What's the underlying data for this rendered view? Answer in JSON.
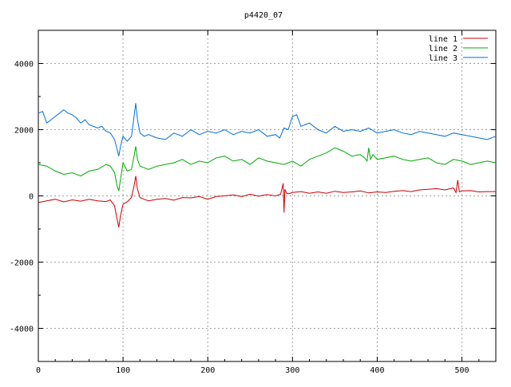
{
  "chart_data": {
    "type": "line",
    "title": "p4420_07",
    "xlabel": "",
    "ylabel": "",
    "xlim": [
      0,
      540
    ],
    "ylim": [
      -5000,
      5000
    ],
    "x_ticks": [
      0,
      100,
      200,
      300,
      400,
      500
    ],
    "y_ticks": [
      -4000,
      -2000,
      0,
      2000,
      4000
    ],
    "grid": true,
    "legend_position": "top-right",
    "series": [
      {
        "name": "line 1",
        "color": "#cc0000",
        "x": [
          0,
          10,
          20,
          30,
          40,
          50,
          60,
          70,
          80,
          85,
          90,
          93,
          95,
          97,
          100,
          105,
          110,
          113,
          115,
          117,
          120,
          125,
          130,
          140,
          150,
          160,
          170,
          180,
          190,
          200,
          210,
          220,
          230,
          240,
          250,
          260,
          270,
          280,
          286,
          289,
          290,
          291,
          293,
          295,
          300,
          310,
          320,
          330,
          340,
          350,
          360,
          370,
          380,
          390,
          400,
          410,
          420,
          430,
          440,
          450,
          460,
          470,
          480,
          490,
          493,
          495,
          497,
          500,
          510,
          520,
          530,
          540
        ],
        "y": [
          -200,
          -150,
          -100,
          -180,
          -120,
          -160,
          -100,
          -150,
          -170,
          -120,
          -300,
          -700,
          -950,
          -600,
          -250,
          -180,
          -50,
          300,
          600,
          200,
          -50,
          -100,
          -150,
          -100,
          -80,
          -130,
          -50,
          -60,
          -20,
          -100,
          -20,
          0,
          30,
          -20,
          50,
          -10,
          40,
          0,
          50,
          380,
          -500,
          200,
          80,
          60,
          100,
          130,
          80,
          120,
          80,
          140,
          100,
          120,
          150,
          90,
          120,
          100,
          140,
          160,
          130,
          180,
          200,
          220,
          180,
          240,
          100,
          480,
          120,
          150,
          160,
          120,
          130,
          130
        ]
      },
      {
        "name": "line 2",
        "color": "#00aa00",
        "x": [
          0,
          10,
          20,
          30,
          40,
          50,
          60,
          70,
          80,
          85,
          90,
          93,
          95,
          97,
          100,
          105,
          110,
          113,
          115,
          117,
          120,
          125,
          130,
          140,
          150,
          160,
          170,
          180,
          190,
          200,
          210,
          220,
          230,
          240,
          250,
          260,
          270,
          280,
          290,
          300,
          310,
          320,
          330,
          340,
          350,
          360,
          370,
          380,
          385,
          388,
          390,
          392,
          395,
          400,
          410,
          420,
          430,
          440,
          450,
          460,
          470,
          480,
          490,
          500,
          510,
          520,
          530,
          540
        ],
        "y": [
          950,
          900,
          750,
          650,
          700,
          600,
          750,
          800,
          950,
          900,
          700,
          300,
          150,
          500,
          1000,
          750,
          800,
          1200,
          1500,
          1100,
          900,
          850,
          800,
          900,
          950,
          1000,
          1100,
          950,
          1050,
          1000,
          1150,
          1200,
          1050,
          1100,
          950,
          1150,
          1050,
          1000,
          950,
          1050,
          900,
          1100,
          1200,
          1300,
          1450,
          1350,
          1200,
          1250,
          1150,
          1050,
          1450,
          1100,
          1250,
          1100,
          1150,
          1200,
          1100,
          1050,
          1100,
          1150,
          1000,
          950,
          1100,
          1050,
          950,
          1000,
          1050,
          1000
        ]
      },
      {
        "name": "line 3",
        "color": "#0070dd",
        "x": [
          0,
          5,
          10,
          15,
          20,
          25,
          30,
          35,
          40,
          45,
          50,
          55,
          60,
          65,
          70,
          75,
          80,
          85,
          90,
          93,
          95,
          97,
          100,
          105,
          110,
          113,
          115,
          117,
          120,
          125,
          130,
          140,
          150,
          160,
          170,
          180,
          190,
          200,
          210,
          220,
          230,
          240,
          250,
          260,
          270,
          280,
          285,
          290,
          295,
          300,
          305,
          310,
          320,
          330,
          340,
          350,
          360,
          370,
          380,
          390,
          400,
          410,
          420,
          430,
          440,
          450,
          460,
          470,
          480,
          490,
          500,
          510,
          520,
          530,
          540
        ],
        "y": [
          2500,
          2550,
          2200,
          2300,
          2400,
          2500,
          2600,
          2500,
          2450,
          2350,
          2200,
          2300,
          2150,
          2100,
          2050,
          2100,
          1950,
          1900,
          1700,
          1400,
          1200,
          1500,
          1800,
          1650,
          1800,
          2400,
          2800,
          2300,
          1900,
          1800,
          1850,
          1750,
          1700,
          1900,
          1800,
          2000,
          1850,
          1950,
          1900,
          2000,
          1850,
          1950,
          1900,
          2000,
          1800,
          1850,
          1750,
          2050,
          2000,
          2400,
          2450,
          2100,
          2200,
          2000,
          1900,
          2100,
          1950,
          2000,
          1950,
          2050,
          1900,
          1950,
          2000,
          1900,
          1850,
          1950,
          1900,
          1850,
          1800,
          1900,
          1850,
          1800,
          1750,
          1700,
          1800
        ]
      }
    ]
  }
}
